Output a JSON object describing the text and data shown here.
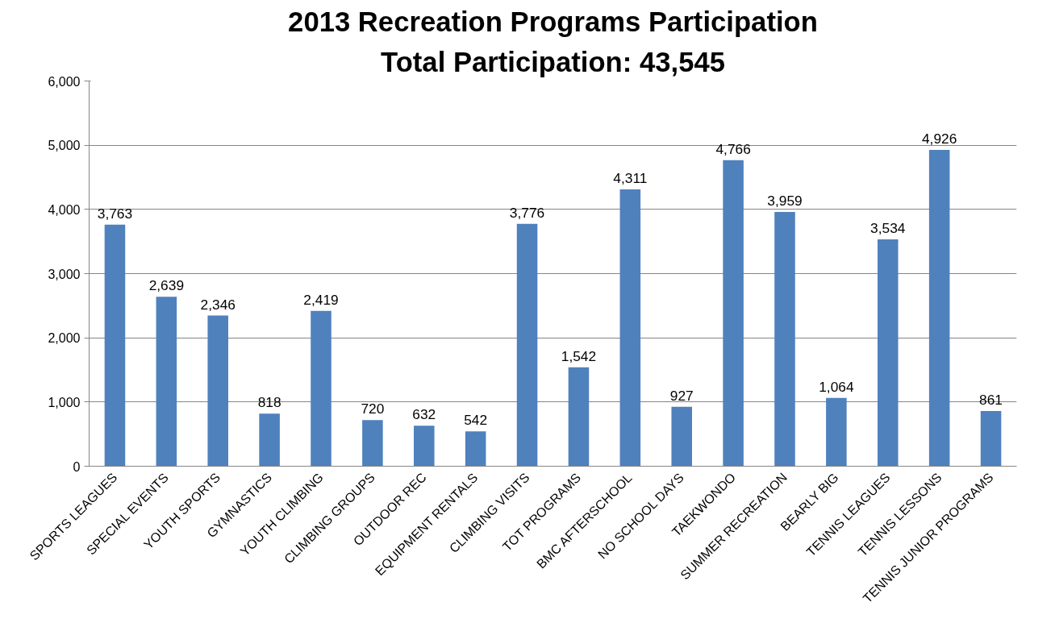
{
  "chart_data": {
    "type": "bar",
    "title": "2013 Recreation Programs Participation",
    "subtitle": "Total Participation: 43,545",
    "categories": [
      "SPORTS LEAGUES",
      "SPECIAL EVENTS",
      "YOUTH SPORTS",
      "GYMNASTICS",
      "YOUTH CLIMBING",
      "CLIMBING GROUPS",
      "OUTDOOR REC",
      "EQUIPMENT RENTALS",
      "CLIMBING VISITS",
      "TOT PROGRAMS",
      "BMC AFTERSCHOOL",
      "NO SCHOOL DAYS",
      "TAEKWONDO",
      "SUMMER RECREATION",
      "BEARLY BIG",
      "TENNIS LEAGUES",
      "TENNIS LESSONS",
      "TENNIS JUNIOR PROGRAMS"
    ],
    "values": [
      3763,
      2639,
      2346,
      818,
      2419,
      720,
      632,
      542,
      3776,
      1542,
      4311,
      927,
      4766,
      3959,
      1064,
      3534,
      4926,
      861
    ],
    "color": "#4f81bd",
    "ylim": [
      0,
      6000
    ],
    "yticks": [
      {
        "value": 0,
        "label": "0"
      },
      {
        "value": 1000,
        "label": "1,000"
      },
      {
        "value": 2000,
        "label": "2,000"
      },
      {
        "value": 3000,
        "label": "3,000"
      },
      {
        "value": 4000,
        "label": "4,000"
      },
      {
        "value": 5000,
        "label": "5,000"
      },
      {
        "value": 6000,
        "label": "6,000"
      }
    ],
    "value_labels": [
      "3,763",
      "2,639",
      "2,346",
      "818",
      "2,419",
      "720",
      "632",
      "542",
      "3,776",
      "1,542",
      "4,311",
      "927",
      "4,766",
      "3,959",
      "1,064",
      "3,534",
      "4,926",
      "861"
    ],
    "grid": "y"
  }
}
